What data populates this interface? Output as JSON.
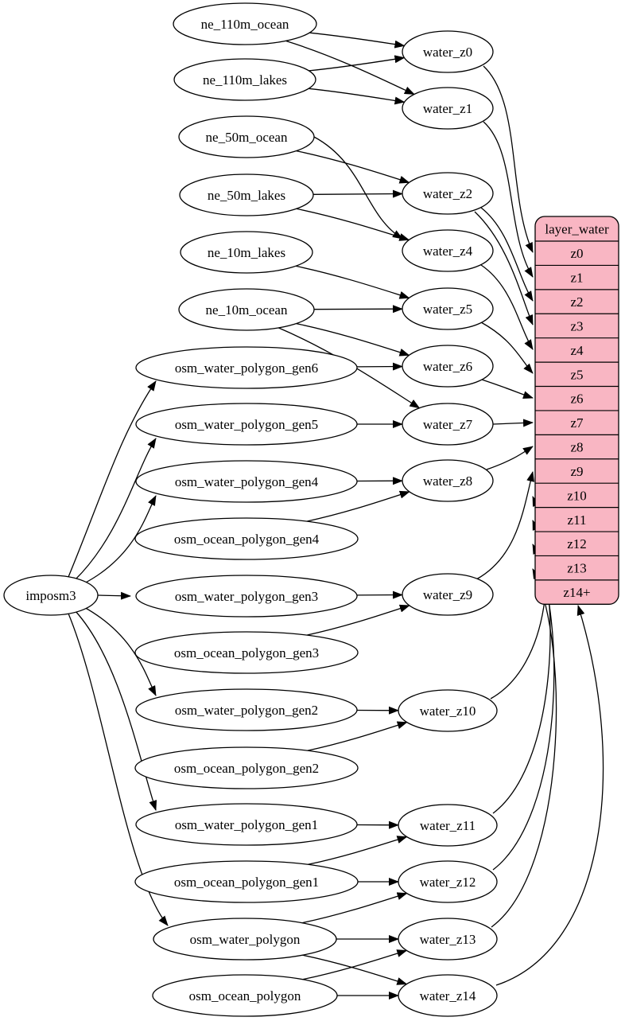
{
  "diagram": {
    "type": "etl-dependency-graph",
    "colors": {
      "background": "#ffffff",
      "node_fill": "#ffffff",
      "stroke": "#000000",
      "edge": "#000000",
      "record_fill": "#f9b6c3"
    },
    "nodes": [
      {
        "id": "imposm3",
        "label": "imposm3"
      },
      {
        "id": "ne_110m_ocean",
        "label": "ne_110m_ocean"
      },
      {
        "id": "ne_110m_lakes",
        "label": "ne_110m_lakes"
      },
      {
        "id": "ne_50m_ocean",
        "label": "ne_50m_ocean"
      },
      {
        "id": "ne_50m_lakes",
        "label": "ne_50m_lakes"
      },
      {
        "id": "ne_10m_lakes",
        "label": "ne_10m_lakes"
      },
      {
        "id": "ne_10m_ocean",
        "label": "ne_10m_ocean"
      },
      {
        "id": "osm_water_polygon_gen6",
        "label": "osm_water_polygon_gen6"
      },
      {
        "id": "osm_water_polygon_gen5",
        "label": "osm_water_polygon_gen5"
      },
      {
        "id": "osm_water_polygon_gen4",
        "label": "osm_water_polygon_gen4"
      },
      {
        "id": "osm_ocean_polygon_gen4",
        "label": "osm_ocean_polygon_gen4"
      },
      {
        "id": "osm_water_polygon_gen3",
        "label": "osm_water_polygon_gen3"
      },
      {
        "id": "osm_ocean_polygon_gen3",
        "label": "osm_ocean_polygon_gen3"
      },
      {
        "id": "osm_water_polygon_gen2",
        "label": "osm_water_polygon_gen2"
      },
      {
        "id": "osm_ocean_polygon_gen2",
        "label": "osm_ocean_polygon_gen2"
      },
      {
        "id": "osm_water_polygon_gen1",
        "label": "osm_water_polygon_gen1"
      },
      {
        "id": "osm_ocean_polygon_gen1",
        "label": "osm_ocean_polygon_gen1"
      },
      {
        "id": "osm_water_polygon",
        "label": "osm_water_polygon"
      },
      {
        "id": "osm_ocean_polygon",
        "label": "osm_ocean_polygon"
      },
      {
        "id": "water_z0",
        "label": "water_z0"
      },
      {
        "id": "water_z1",
        "label": "water_z1"
      },
      {
        "id": "water_z2",
        "label": "water_z2"
      },
      {
        "id": "water_z4",
        "label": "water_z4"
      },
      {
        "id": "water_z5",
        "label": "water_z5"
      },
      {
        "id": "water_z6",
        "label": "water_z6"
      },
      {
        "id": "water_z7",
        "label": "water_z7"
      },
      {
        "id": "water_z8",
        "label": "water_z8"
      },
      {
        "id": "water_z9",
        "label": "water_z9"
      },
      {
        "id": "water_z10",
        "label": "water_z10"
      },
      {
        "id": "water_z11",
        "label": "water_z11"
      },
      {
        "id": "water_z12",
        "label": "water_z12"
      },
      {
        "id": "water_z13",
        "label": "water_z13"
      },
      {
        "id": "water_z14",
        "label": "water_z14"
      }
    ],
    "record": {
      "id": "layer_water",
      "header": "layer_water",
      "rows": [
        "z0",
        "z1",
        "z2",
        "z3",
        "z4",
        "z5",
        "z6",
        "z7",
        "z8",
        "z9",
        "z10",
        "z11",
        "z12",
        "z13",
        "z14+"
      ]
    },
    "edges": [
      {
        "from": "imposm3",
        "to": "osm_water_polygon_gen6"
      },
      {
        "from": "imposm3",
        "to": "osm_water_polygon_gen5"
      },
      {
        "from": "imposm3",
        "to": "osm_water_polygon_gen4"
      },
      {
        "from": "imposm3",
        "to": "osm_water_polygon_gen3"
      },
      {
        "from": "imposm3",
        "to": "osm_water_polygon_gen2"
      },
      {
        "from": "imposm3",
        "to": "osm_water_polygon_gen1"
      },
      {
        "from": "imposm3",
        "to": "osm_water_polygon"
      },
      {
        "from": "ne_110m_ocean",
        "to": "water_z0"
      },
      {
        "from": "ne_110m_ocean",
        "to": "water_z1"
      },
      {
        "from": "ne_110m_lakes",
        "to": "water_z0"
      },
      {
        "from": "ne_110m_lakes",
        "to": "water_z1"
      },
      {
        "from": "ne_50m_ocean",
        "to": "water_z2"
      },
      {
        "from": "ne_50m_ocean",
        "to": "water_z4"
      },
      {
        "from": "ne_50m_lakes",
        "to": "water_z2"
      },
      {
        "from": "ne_50m_lakes",
        "to": "water_z4"
      },
      {
        "from": "ne_10m_lakes",
        "to": "water_z5"
      },
      {
        "from": "ne_10m_ocean",
        "to": "water_z5"
      },
      {
        "from": "ne_10m_ocean",
        "to": "water_z6"
      },
      {
        "from": "ne_10m_ocean",
        "to": "water_z7"
      },
      {
        "from": "osm_water_polygon_gen6",
        "to": "water_z6"
      },
      {
        "from": "osm_water_polygon_gen5",
        "to": "water_z7"
      },
      {
        "from": "osm_water_polygon_gen4",
        "to": "water_z8"
      },
      {
        "from": "osm_ocean_polygon_gen4",
        "to": "water_z8"
      },
      {
        "from": "osm_water_polygon_gen3",
        "to": "water_z9"
      },
      {
        "from": "osm_ocean_polygon_gen3",
        "to": "water_z9"
      },
      {
        "from": "osm_water_polygon_gen2",
        "to": "water_z10"
      },
      {
        "from": "osm_ocean_polygon_gen2",
        "to": "water_z10"
      },
      {
        "from": "osm_water_polygon_gen1",
        "to": "water_z11"
      },
      {
        "from": "osm_ocean_polygon_gen1",
        "to": "water_z11"
      },
      {
        "from": "osm_ocean_polygon_gen1",
        "to": "water_z12"
      },
      {
        "from": "osm_water_polygon",
        "to": "water_z12"
      },
      {
        "from": "osm_water_polygon",
        "to": "water_z13"
      },
      {
        "from": "osm_water_polygon",
        "to": "water_z14"
      },
      {
        "from": "osm_ocean_polygon",
        "to": "water_z13"
      },
      {
        "from": "osm_ocean_polygon",
        "to": "water_z14"
      },
      {
        "from": "water_z0",
        "to": "layer_water",
        "row": "z0"
      },
      {
        "from": "water_z1",
        "to": "layer_water",
        "row": "z1"
      },
      {
        "from": "water_z2",
        "to": "layer_water",
        "row": "z2"
      },
      {
        "from": "water_z2",
        "to": "layer_water",
        "row": "z3"
      },
      {
        "from": "water_z4",
        "to": "layer_water",
        "row": "z4"
      },
      {
        "from": "water_z5",
        "to": "layer_water",
        "row": "z5"
      },
      {
        "from": "water_z6",
        "to": "layer_water",
        "row": "z6"
      },
      {
        "from": "water_z7",
        "to": "layer_water",
        "row": "z7"
      },
      {
        "from": "water_z8",
        "to": "layer_water",
        "row": "z8"
      },
      {
        "from": "water_z9",
        "to": "layer_water",
        "row": "z9"
      },
      {
        "from": "water_z10",
        "to": "layer_water",
        "row": "z10"
      },
      {
        "from": "water_z11",
        "to": "layer_water",
        "row": "z11"
      },
      {
        "from": "water_z12",
        "to": "layer_water",
        "row": "z12"
      },
      {
        "from": "water_z13",
        "to": "layer_water",
        "row": "z13"
      },
      {
        "from": "water_z14",
        "to": "layer_water",
        "row": "z14+"
      }
    ]
  }
}
